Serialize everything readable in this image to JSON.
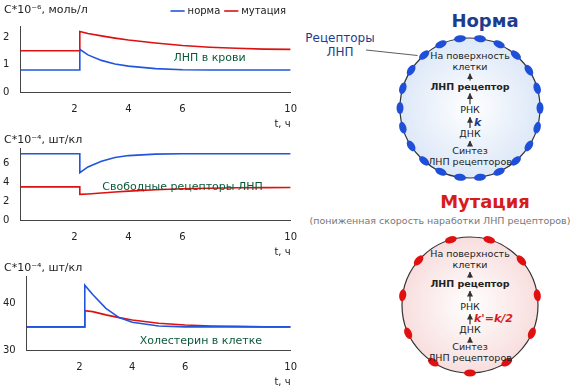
{
  "chart_data": [
    {
      "type": "line",
      "annotation": "ЛНП в крови",
      "y_label": "C*10⁻⁶, моль/л",
      "x_label": "t, ч",
      "legend": "top-right",
      "grid": false,
      "x": [
        0,
        1,
        2,
        2.2,
        2.2,
        2.5,
        3,
        3.5,
        4,
        5,
        6,
        7,
        8,
        9,
        10
      ],
      "xlim": [
        0,
        10
      ],
      "xticks": [
        2,
        4,
        6,
        10
      ],
      "ylim": [
        0,
        2.4
      ],
      "yticks": [
        0,
        1,
        2
      ],
      "series": [
        {
          "name": "норма",
          "color": "#2255dd",
          "values": [
            0.8,
            0.8,
            0.8,
            0.8,
            1.55,
            1.35,
            1.15,
            1.02,
            0.94,
            0.85,
            0.81,
            0.8,
            0.8,
            0.8,
            0.8
          ]
        },
        {
          "name": "мутация",
          "color": "#dd1111",
          "values": [
            1.5,
            1.5,
            1.5,
            1.5,
            2.2,
            2.13,
            2.04,
            1.96,
            1.89,
            1.78,
            1.69,
            1.63,
            1.59,
            1.56,
            1.55
          ]
        }
      ]
    },
    {
      "type": "line",
      "annotation": "Свободные рецепторы ЛНП",
      "y_label": "C*10⁻⁴, шт/кл",
      "x_label": "t, ч",
      "grid": false,
      "x": [
        0,
        1,
        2,
        2.2,
        2.2,
        2.5,
        3,
        3.5,
        4,
        5,
        6,
        7,
        8,
        9,
        10
      ],
      "xlim": [
        0,
        10
      ],
      "xticks": [
        2,
        4,
        6,
        10
      ],
      "ylim": [
        0,
        7.6
      ],
      "yticks": [
        0,
        2,
        4,
        6
      ],
      "series": [
        {
          "color": "#2255dd",
          "values": [
            7,
            7,
            7,
            7,
            5,
            5.6,
            6.2,
            6.6,
            6.8,
            6.95,
            7,
            7,
            7,
            7,
            7
          ]
        },
        {
          "color": "#dd1111",
          "values": [
            3.5,
            3.5,
            3.5,
            3.5,
            2.7,
            2.75,
            2.85,
            2.95,
            3.05,
            3.2,
            3.3,
            3.35,
            3.4,
            3.42,
            3.43
          ]
        }
      ]
    },
    {
      "type": "line",
      "annotation": "Холестерин в клетке",
      "y_label": "C*10⁻⁴, шт/кл",
      "x_label": "t, ч",
      "grid": false,
      "x": [
        0,
        1,
        2,
        2.2,
        2.2,
        2.5,
        3,
        3.5,
        4,
        5,
        6,
        7,
        8,
        9,
        10
      ],
      "xlim": [
        0,
        10
      ],
      "xticks": [
        2,
        4,
        6,
        10
      ],
      "ylim": [
        30,
        46
      ],
      "yticks": [
        30,
        40
      ],
      "series": [
        {
          "color": "#2255dd",
          "values": [
            35,
            35,
            35,
            35,
            44,
            42,
            39,
            37,
            36,
            35.2,
            35,
            35,
            35,
            35,
            35
          ]
        },
        {
          "color": "#dd1111",
          "values": [
            35,
            35,
            35,
            35,
            38.5,
            38.3,
            37.6,
            37,
            36.5,
            35.8,
            35.4,
            35.2,
            35.1,
            35,
            35
          ]
        }
      ]
    }
  ],
  "diagram": {
    "panels": [
      {
        "title": "Норма",
        "color": "#1c3d8f",
        "receptor_color": "#1f4fd8",
        "fill": "#dde8f8",
        "receptors": 22,
        "receptor_label": [
          "Рецепторы",
          "ЛНП"
        ],
        "steps": [
          [
            "На поверхность",
            "клетки"
          ],
          [
            "ЛНП рецептор"
          ],
          [
            "РНК"
          ],
          [
            "ДНК"
          ],
          [
            "Синтез",
            "ЛНП рецепторов"
          ]
        ],
        "rate": "k"
      },
      {
        "title": "Мутация",
        "subtitle": "(пониженная скорость наработки ЛНП рецепторов)",
        "color": "#d81b1b",
        "receptor_color": "#e01010",
        "fill": "#f8dede",
        "receptors": 11,
        "steps": [
          [
            "На поверхность",
            "клетки"
          ],
          [
            "ЛНП рецептор"
          ],
          [
            "РНК"
          ],
          [
            "ДНК"
          ],
          [
            "Синтез",
            "ЛНП рецепторов"
          ]
        ],
        "rate": "k'=k/2"
      }
    ]
  }
}
